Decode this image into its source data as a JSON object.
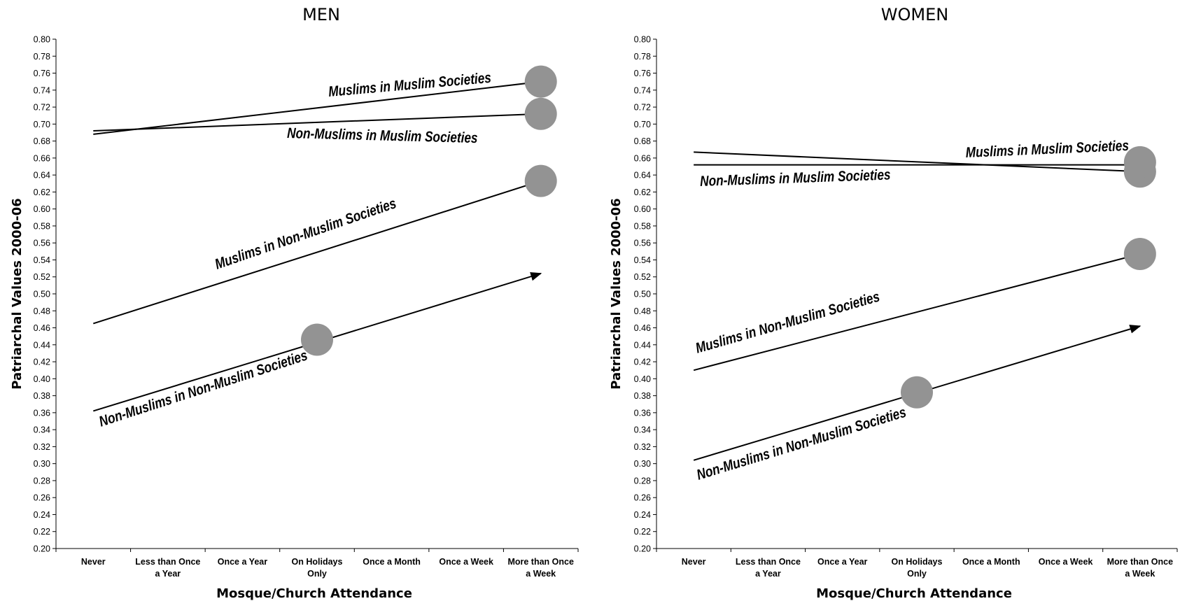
{
  "figure": {
    "ylabel": "Patriarchal Values 2000-06",
    "xlabel": "Mosque/Church Attendance"
  },
  "chart_data": [
    {
      "type": "line",
      "title": "MEN",
      "xlabel": "Mosque/Church Attendance",
      "ylabel": "Patriarchal Values 2000-06",
      "ylim": [
        0.2,
        0.8
      ],
      "ytick_step": 0.02,
      "categories": [
        [
          "Never"
        ],
        [
          "Less than Once",
          "a Year"
        ],
        [
          "Once a Year"
        ],
        [
          "On Holidays",
          "Only"
        ],
        [
          "Once a Month"
        ],
        [
          "Once a Week"
        ],
        [
          "More than Once",
          "a Week"
        ]
      ],
      "grid": false,
      "marker_color": "#939393",
      "series": [
        {
          "name": "Muslims in Muslim Societies",
          "x_start": 0,
          "y_start": 0.688,
          "x_end": 6,
          "y_end": 0.75,
          "marker_x": 6,
          "arrow": false
        },
        {
          "name": "Non-Muslims in Muslim Societies",
          "x_start": 0,
          "y_start": 0.692,
          "x_end": 6,
          "y_end": 0.712,
          "marker_x": 6,
          "arrow": false
        },
        {
          "name": "Muslims in Non-Muslim Societies",
          "x_start": 0,
          "y_start": 0.465,
          "x_end": 6,
          "y_end": 0.633,
          "marker_x": 6,
          "arrow": false
        },
        {
          "name": "Non-Muslims in Non-Muslim Societies",
          "x_start": 0,
          "y_start": 0.362,
          "x_end": 6,
          "y_end": 0.524,
          "marker_x": 3,
          "marker_y": 0.446,
          "arrow": true
        }
      ]
    },
    {
      "type": "line",
      "title": "WOMEN",
      "xlabel": "Mosque/Church Attendance",
      "ylabel": "Patriarchal Values 2000-06",
      "ylim": [
        0.2,
        0.8
      ],
      "ytick_step": 0.02,
      "categories": [
        [
          "Never"
        ],
        [
          "Less than Once",
          "a Year"
        ],
        [
          "Once a Year"
        ],
        [
          "On Holidays",
          "Only"
        ],
        [
          "Once a Month"
        ],
        [
          "Once a Week"
        ],
        [
          "More than Once",
          "a Week"
        ]
      ],
      "grid": false,
      "marker_color": "#939393",
      "series": [
        {
          "name": "Muslims in Muslim Societies",
          "x_start": 0,
          "y_start": 0.667,
          "x_end": 6,
          "y_end": 0.644,
          "marker_x": 6,
          "arrow": false
        },
        {
          "name": "Non-Muslims in Muslim Societies",
          "x_start": 0,
          "y_start": 0.652,
          "x_end": 6,
          "y_end": 0.652,
          "marker_x": 6,
          "marker_y": 0.655,
          "arrow": false
        },
        {
          "name": "Muslims in Non-Muslim Societies",
          "x_start": 0,
          "y_start": 0.41,
          "x_end": 6,
          "y_end": 0.547,
          "marker_x": 6,
          "arrow": false
        },
        {
          "name": "Non-Muslims in Non-Muslim Societies",
          "x_start": 0,
          "y_start": 0.304,
          "x_end": 6,
          "y_end": 0.462,
          "marker_x": 3,
          "marker_y": 0.384,
          "arrow": true
        }
      ]
    }
  ]
}
